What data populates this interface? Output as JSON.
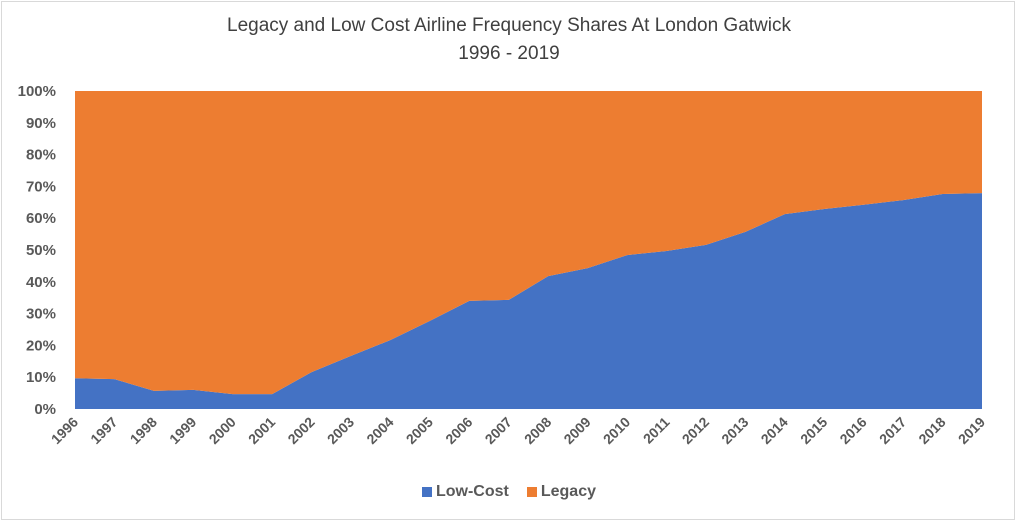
{
  "chart_data": {
    "type": "area",
    "stacked": "percent",
    "title": "Legacy and Low Cost Airline Frequency Shares At London Gatwick",
    "subtitle": "1996 - 2019",
    "xlabel": "",
    "ylabel": "",
    "ylim": [
      0,
      100
    ],
    "yticks": [
      "0%",
      "10%",
      "20%",
      "30%",
      "40%",
      "50%",
      "60%",
      "70%",
      "80%",
      "90%",
      "100%"
    ],
    "grid": false,
    "legend_position": "bottom",
    "categories": [
      "1996",
      "1997",
      "1998",
      "1999",
      "2000",
      "2001",
      "2002",
      "2003",
      "2004",
      "2005",
      "2006",
      "2007",
      "2008",
      "2009",
      "2010",
      "2011",
      "2012",
      "2013",
      "2014",
      "2015",
      "2016",
      "2017",
      "2018",
      "2019"
    ],
    "series": [
      {
        "name": "Low-Cost",
        "color": "#4472C4",
        "values": [
          9.7,
          9.4,
          5.7,
          6.0,
          4.7,
          4.7,
          11.6,
          16.7,
          21.7,
          27.7,
          34.0,
          34.3,
          41.8,
          44.3,
          48.4,
          49.7,
          51.6,
          55.7,
          61.3,
          62.9,
          64.2,
          65.7,
          67.6,
          67.9
        ]
      },
      {
        "name": "Legacy",
        "color": "#ED7D31",
        "values": [
          90.3,
          90.6,
          94.3,
          94.0,
          95.3,
          95.3,
          88.4,
          83.3,
          78.3,
          72.3,
          66.0,
          65.7,
          58.2,
          55.7,
          51.6,
          50.3,
          48.4,
          44.3,
          38.7,
          37.1,
          35.8,
          34.3,
          32.4,
          32.1
        ]
      }
    ]
  }
}
